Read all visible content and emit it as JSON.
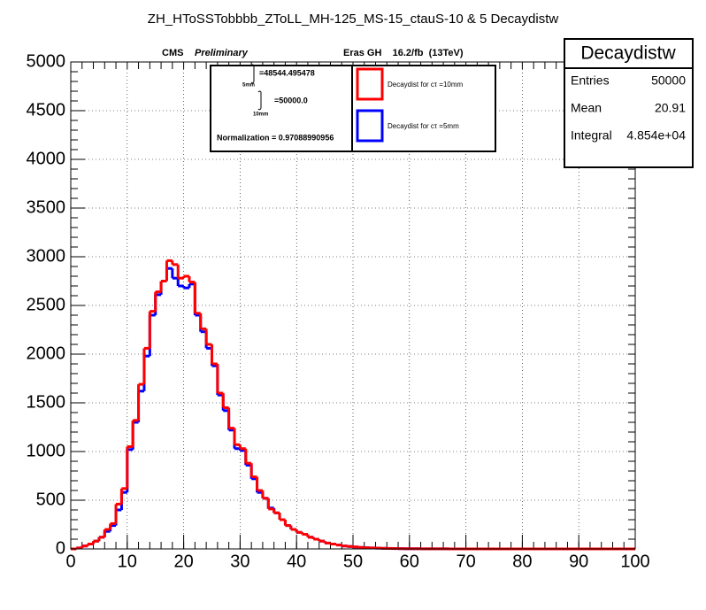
{
  "chart_data": {
    "type": "histogram",
    "title": "ZH_HToSSTobbbb_ZToLL_MH-125_MS-15_ctauS-10 & 5 Decaydistw",
    "cms_label": "CMS",
    "cms_sublabel": "Preliminary",
    "lumi_label": "Eras GH    16.2/fb  (13TeV)",
    "integral_box": {
      "line1": "=48544.495478",
      "line1_sub": "5mm",
      "line2": "=50000.0",
      "line2_sub": "10mm",
      "normalization": "Normalization = 0.97088990956"
    },
    "stats": {
      "name": "Decaydistw",
      "rows": [
        [
          "Entries",
          "50000"
        ],
        [
          "Mean",
          "20.91"
        ],
        [
          "Integral",
          "4.854e+04"
        ]
      ]
    },
    "bins": [
      0,
      1,
      2,
      3,
      4,
      5,
      6,
      7,
      8,
      9,
      10,
      11,
      12,
      13,
      14,
      15,
      16,
      17,
      18,
      19,
      20,
      21,
      22,
      23,
      24,
      25,
      26,
      27,
      28,
      29,
      30,
      31,
      32,
      33,
      34,
      35,
      36,
      37,
      38,
      39,
      40,
      41,
      42,
      43,
      44,
      45,
      46,
      47,
      48,
      49,
      50,
      51,
      52,
      53,
      54,
      55,
      56,
      57,
      58,
      59,
      60,
      61,
      62,
      63,
      64,
      65,
      66,
      67,
      68,
      69,
      70,
      71,
      72,
      73,
      74,
      75,
      76,
      77,
      78,
      79,
      80,
      81,
      82,
      83,
      84,
      85,
      86,
      87,
      88,
      89,
      90,
      91,
      92,
      93,
      94,
      95,
      96,
      97,
      98,
      99,
      100
    ],
    "series": [
      {
        "name": "Decaydist for cτ =5mm",
        "color": "#0000ff",
        "values": [
          0,
          10,
          30,
          50,
          80,
          120,
          180,
          240,
          400,
          580,
          1020,
          1300,
          1620,
          1980,
          2400,
          2610,
          2750,
          2880,
          2780,
          2700,
          2680,
          2720,
          2400,
          2230,
          2060,
          1880,
          1580,
          1420,
          1220,
          1030,
          1010,
          860,
          720,
          580,
          520,
          420,
          370,
          300,
          240,
          200,
          170,
          150,
          120,
          100,
          80,
          60,
          50,
          40,
          30,
          25,
          20,
          15,
          12,
          10,
          8,
          6,
          5,
          4,
          3,
          2,
          2,
          2,
          1,
          1,
          1,
          1,
          1,
          0,
          0,
          0,
          0,
          0,
          0,
          0,
          0,
          0,
          0,
          0,
          0,
          0,
          0,
          0,
          0,
          0,
          0,
          0,
          0,
          0,
          0,
          0,
          0,
          0,
          0,
          0,
          0,
          0,
          0,
          0,
          0,
          0
        ]
      },
      {
        "name": "Decaydist for cτ =10mm",
        "color": "#ff0000",
        "values": [
          0,
          10,
          30,
          50,
          80,
          120,
          200,
          260,
          460,
          620,
          1050,
          1320,
          1690,
          2060,
          2440,
          2640,
          2750,
          2960,
          2920,
          2780,
          2800,
          2740,
          2420,
          2260,
          2100,
          1900,
          1600,
          1450,
          1240,
          1070,
          1030,
          880,
          740,
          600,
          520,
          410,
          370,
          300,
          240,
          200,
          170,
          150,
          120,
          100,
          80,
          60,
          50,
          40,
          30,
          25,
          20,
          15,
          12,
          10,
          8,
          6,
          5,
          4,
          3,
          2,
          2,
          2,
          1,
          1,
          1,
          1,
          1,
          0,
          0,
          0,
          0,
          0,
          0,
          0,
          0,
          0,
          0,
          0,
          0,
          0,
          0,
          0,
          0,
          0,
          0,
          0,
          0,
          0,
          0,
          0,
          0,
          0,
          0,
          0,
          0,
          0,
          0,
          0,
          0,
          0
        ]
      }
    ],
    "xlim": [
      0,
      100
    ],
    "xticks": [
      0,
      10,
      20,
      30,
      40,
      50,
      60,
      70,
      80,
      90,
      100
    ],
    "ylim": [
      0,
      5000
    ],
    "yticks": [
      0,
      500,
      1000,
      1500,
      2000,
      2500,
      3000,
      3500,
      4000,
      4500,
      5000
    ],
    "grid": true
  }
}
